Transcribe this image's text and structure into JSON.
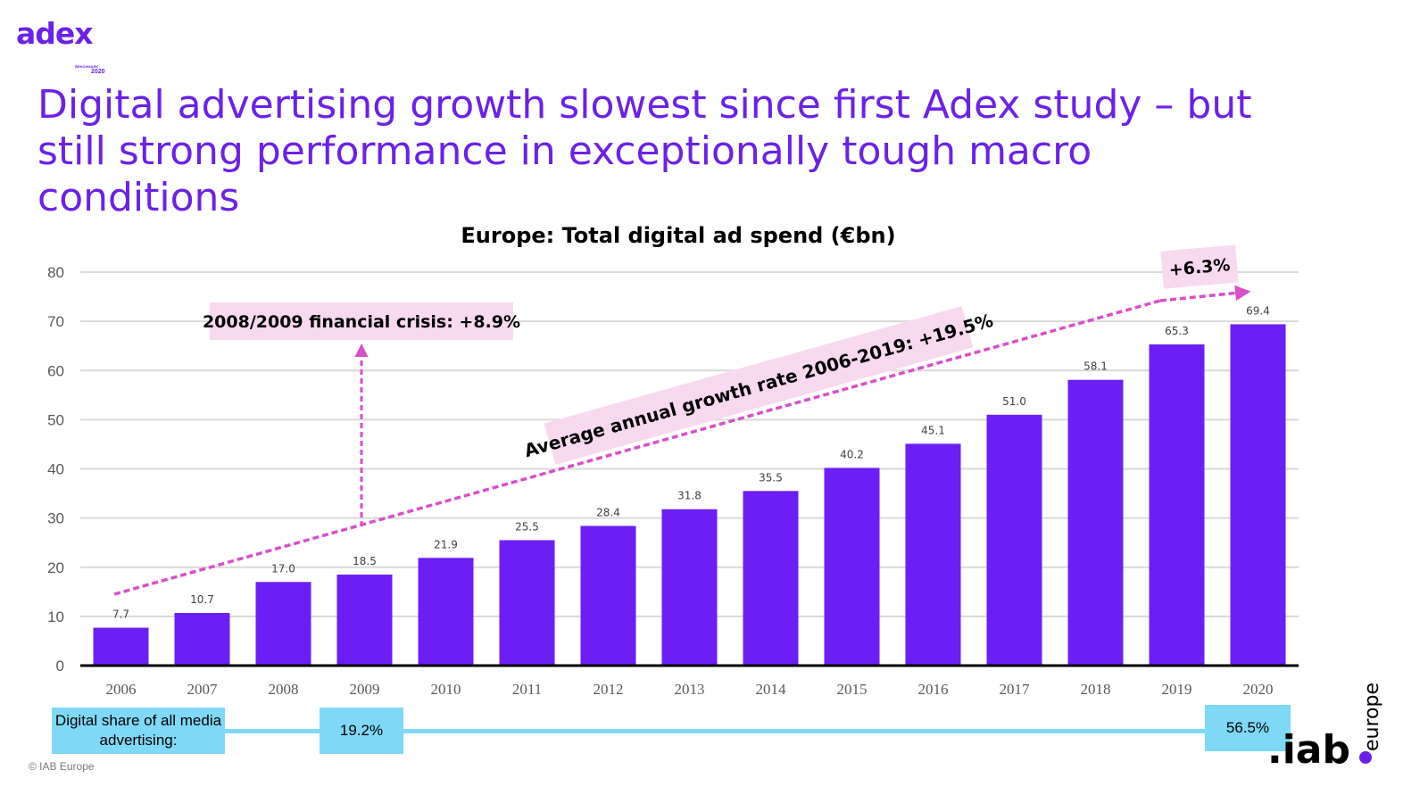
{
  "brand": {
    "logo_word": "adex",
    "logo_sub1": "BENCHMARK",
    "logo_sub2": "2020",
    "footer_logo": "iab.europe"
  },
  "headline": "Digital advertising growth slowest since first Adex study – but still strong performance in exceptionally tough macro conditions",
  "chart_data": {
    "type": "bar",
    "title": "Europe: Total digital ad spend (€bn)",
    "categories": [
      "2006",
      "2007",
      "2008",
      "2009",
      "2010",
      "2011",
      "2012",
      "2013",
      "2014",
      "2015",
      "2016",
      "2017",
      "2018",
      "2019",
      "2020"
    ],
    "values": [
      7.7,
      10.7,
      17.0,
      18.5,
      21.9,
      25.5,
      28.4,
      31.8,
      35.5,
      40.2,
      45.1,
      51.0,
      58.1,
      65.3,
      69.4
    ],
    "value_labels": [
      "7.7",
      "10.7",
      "17.0",
      "18.5",
      "21.9",
      "25.5",
      "28.4",
      "31.8",
      "35.5",
      "40.2",
      "45.1",
      "51.0",
      "58.1",
      "65.3",
      "69.4"
    ],
    "ylim": [
      0,
      80
    ],
    "yticks": [
      0,
      10,
      20,
      30,
      40,
      50,
      60,
      70,
      80
    ],
    "grid": true,
    "bar_color": "#6b1ff5",
    "annotations": {
      "crisis": "2008/2009 financial crisis: +8.9%",
      "trend": "Average annual growth rate 2006-2019: +19.5%",
      "last_year": "+6.3%"
    },
    "accent_colors": {
      "annotation_fill": "#f8d9f0",
      "arrow": "#d84fc8"
    }
  },
  "digital_share": {
    "label": "Digital share of all media advertising:",
    "value_2009": "19.2%",
    "value_2020": "56.5%"
  },
  "copyright": "© IAB Europe"
}
